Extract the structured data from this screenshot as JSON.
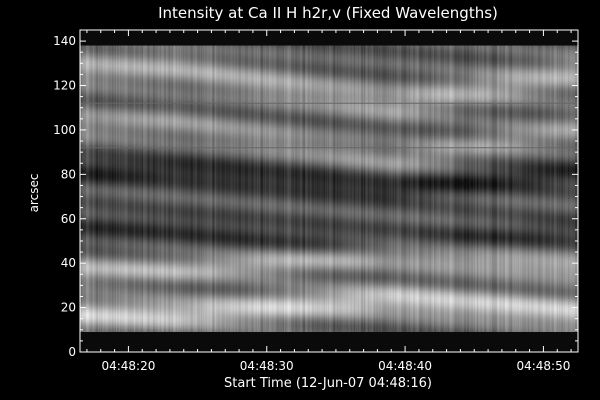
{
  "chart_data": {
    "type": "heatmap",
    "title": "Intensity at Ca II H h2r,v (Fixed Wavelengths)",
    "xlabel": "Start Time (12-Jun-07 04:48:16)",
    "ylabel": "arcsec",
    "colormap": "grayscale",
    "x_tick_labels": [
      "04:48:20",
      "04:48:30",
      "04:48:40",
      "04:48:50"
    ],
    "x_tick_seconds": [
      20,
      30,
      40,
      50
    ],
    "x_range_seconds": [
      16.5,
      52.5
    ],
    "y_tick_labels": [
      "0",
      "20",
      "40",
      "60",
      "80",
      "100",
      "120",
      "140"
    ],
    "y_tick_values": [
      0,
      20,
      40,
      60,
      80,
      100,
      120,
      140
    ],
    "ylim": [
      0,
      145
    ],
    "data_y_range": [
      9,
      138
    ],
    "horizontal_reference_lines": [
      92,
      112
    ],
    "bright_bands": [
      {
        "y_center": 17,
        "y_width": 7,
        "strength": 0.42
      },
      {
        "y_center": 37,
        "y_width": 6,
        "strength": 0.32
      },
      {
        "y_center": 103,
        "y_width": 7,
        "strength": 0.22
      },
      {
        "y_center": 128,
        "y_width": 8,
        "strength": 0.28
      }
    ],
    "dark_bands": [
      {
        "y_center": 82,
        "y_width": 6,
        "strength": 0.22
      },
      {
        "y_center": 56,
        "y_width": 7,
        "strength": 0.15
      }
    ],
    "v_pattern_center_seconds": 39,
    "colors": {
      "background": "#000000",
      "axes": "#ffffff",
      "text": "#ffffff"
    }
  }
}
